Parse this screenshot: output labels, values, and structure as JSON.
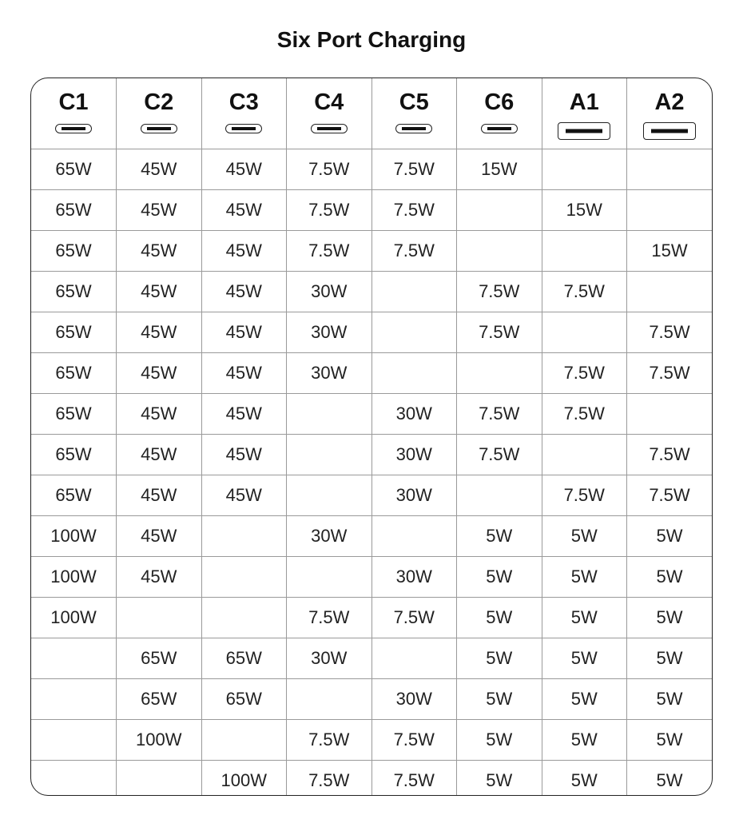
{
  "title": "Six Port Charging",
  "columns": [
    {
      "label": "C1",
      "port_icon": "usb-c-port-icon"
    },
    {
      "label": "C2",
      "port_icon": "usb-c-port-icon"
    },
    {
      "label": "C3",
      "port_icon": "usb-c-port-icon"
    },
    {
      "label": "C4",
      "port_icon": "usb-c-port-icon"
    },
    {
      "label": "C5",
      "port_icon": "usb-c-port-icon"
    },
    {
      "label": "C6",
      "port_icon": "usb-c-port-icon"
    },
    {
      "label": "A1",
      "port_icon": "usb-a-port-icon"
    },
    {
      "label": "A2",
      "port_icon": "usb-a-port-icon"
    }
  ],
  "rows": [
    [
      "65W",
      "45W",
      "45W",
      "7.5W",
      "7.5W",
      "15W",
      "",
      ""
    ],
    [
      "65W",
      "45W",
      "45W",
      "7.5W",
      "7.5W",
      "",
      "15W",
      ""
    ],
    [
      "65W",
      "45W",
      "45W",
      "7.5W",
      "7.5W",
      "",
      "",
      "15W"
    ],
    [
      "65W",
      "45W",
      "45W",
      "30W",
      "",
      "7.5W",
      "7.5W",
      ""
    ],
    [
      "65W",
      "45W",
      "45W",
      "30W",
      "",
      "7.5W",
      "",
      "7.5W"
    ],
    [
      "65W",
      "45W",
      "45W",
      "30W",
      "",
      "",
      "7.5W",
      "7.5W"
    ],
    [
      "65W",
      "45W",
      "45W",
      "",
      "30W",
      "7.5W",
      "7.5W",
      ""
    ],
    [
      "65W",
      "45W",
      "45W",
      "",
      "30W",
      "7.5W",
      "",
      "7.5W"
    ],
    [
      "65W",
      "45W",
      "45W",
      "",
      "30W",
      "",
      "7.5W",
      "7.5W"
    ],
    [
      "100W",
      "45W",
      "",
      "30W",
      "",
      "5W",
      "5W",
      "5W"
    ],
    [
      "100W",
      "45W",
      "",
      "",
      "30W",
      "5W",
      "5W",
      "5W"
    ],
    [
      "100W",
      "",
      "",
      "7.5W",
      "7.5W",
      "5W",
      "5W",
      "5W"
    ],
    [
      "",
      "65W",
      "65W",
      "30W",
      "",
      "5W",
      "5W",
      "5W"
    ],
    [
      "",
      "65W",
      "65W",
      "",
      "30W",
      "5W",
      "5W",
      "5W"
    ],
    [
      "",
      "100W",
      "",
      "7.5W",
      "7.5W",
      "5W",
      "5W",
      "5W"
    ],
    [
      "",
      "",
      "100W",
      "7.5W",
      "7.5W",
      "5W",
      "5W",
      "5W"
    ]
  ]
}
